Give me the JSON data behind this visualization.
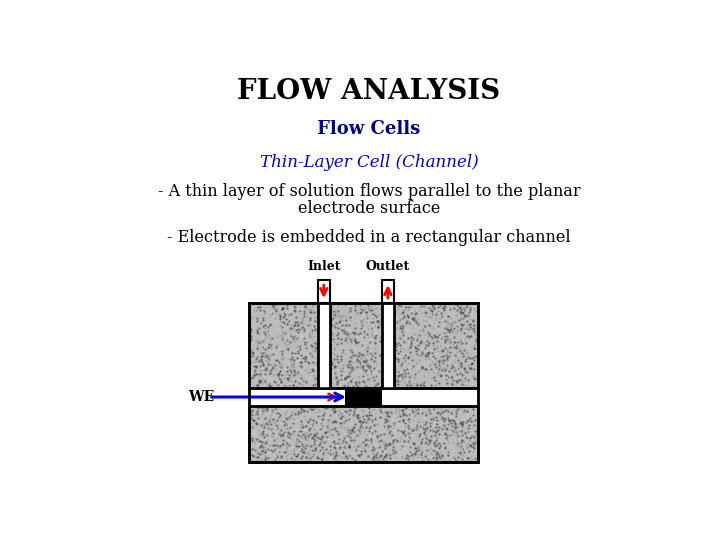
{
  "title": "FLOW ANALYSIS",
  "subtitle": "Flow Cells",
  "line1_color": "#0000CC",
  "line1_text": "Thin-Layer Cell (Channel)",
  "line2_text": "- A thin layer of solution flows parallel to the planar\nelectrode surface",
  "line3_text": "- Electrode is embedded in a rectangular channel",
  "bg_color": "#FFFFFF",
  "title_color": "#000000",
  "subtitle_color": "#00008B",
  "body_color": "#000000",
  "diagram": {
    "inlet_label": "Inlet",
    "outlet_label": "Outlet",
    "we_label": "WE"
  }
}
